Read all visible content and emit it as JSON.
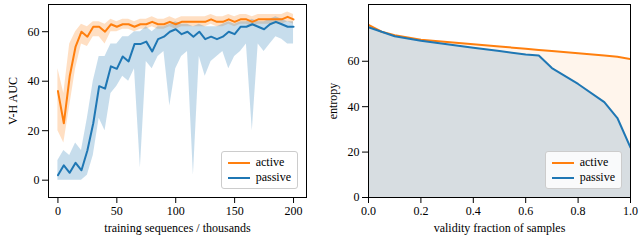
{
  "chart_data": [
    {
      "type": "line",
      "x_label": "training sequences / thousands",
      "y_label": "V-H AUC",
      "x": [
        0,
        5,
        10,
        15,
        20,
        25,
        30,
        35,
        40,
        45,
        50,
        55,
        60,
        65,
        70,
        75,
        80,
        85,
        90,
        95,
        100,
        105,
        110,
        115,
        120,
        125,
        130,
        135,
        140,
        145,
        150,
        155,
        160,
        165,
        170,
        175,
        180,
        185,
        190,
        195,
        200
      ],
      "xlim": [
        -8,
        211
      ],
      "xticks": [
        0,
        50,
        100,
        150,
        200
      ],
      "ylim": [
        -7,
        71
      ],
      "yticks": [
        0,
        20,
        40,
        60
      ],
      "grid": false,
      "legend": "lower right",
      "series": [
        {
          "name": "active",
          "color": "#ff7f0e",
          "values": [
            36,
            23,
            42,
            54,
            60,
            58,
            62,
            62,
            60,
            63,
            62,
            63,
            63,
            62,
            63,
            63,
            64,
            63,
            63,
            64,
            63,
            64,
            64,
            64,
            64,
            64,
            65,
            64,
            64,
            65,
            64,
            65,
            65,
            64,
            65,
            65,
            65,
            65,
            65,
            66,
            65
          ],
          "lower": [
            20,
            15,
            30,
            45,
            55,
            54,
            58,
            58,
            55,
            60,
            60,
            61,
            61,
            60,
            61,
            61,
            62,
            61,
            61,
            62,
            61,
            62,
            62,
            62,
            62,
            62,
            63,
            62,
            62,
            63,
            62,
            63,
            63,
            62,
            63,
            63,
            63,
            63,
            63,
            64,
            63
          ],
          "upper": [
            45,
            35,
            55,
            60,
            63,
            62,
            64,
            64,
            63,
            65,
            64,
            65,
            65,
            64,
            65,
            65,
            66,
            65,
            65,
            66,
            65,
            66,
            66,
            66,
            66,
            66,
            67,
            66,
            66,
            67,
            66,
            67,
            67,
            66,
            67,
            67,
            67,
            67,
            67,
            68,
            67
          ]
        },
        {
          "name": "passive",
          "color": "#1f77b4",
          "values": [
            2,
            6,
            3,
            7,
            4,
            12,
            23,
            38,
            37,
            46,
            45,
            50,
            48,
            55,
            55,
            56,
            52,
            57,
            58,
            60,
            61,
            59,
            60,
            58,
            60,
            57,
            58,
            57,
            58,
            60,
            59,
            62,
            62,
            63,
            62,
            61,
            63,
            64,
            63,
            62,
            62
          ],
          "lower": [
            0,
            0,
            0,
            0,
            0,
            2,
            10,
            25,
            20,
            35,
            38,
            42,
            40,
            45,
            5,
            48,
            45,
            50,
            52,
            30,
            45,
            50,
            52,
            2,
            50,
            42,
            48,
            50,
            52,
            45,
            50,
            52,
            55,
            20,
            55,
            52,
            55,
            58,
            57,
            55,
            55
          ],
          "upper": [
            8,
            12,
            10,
            15,
            12,
            25,
            40,
            50,
            50,
            55,
            55,
            58,
            58,
            60,
            60,
            62,
            60,
            62,
            62,
            63,
            64,
            63,
            63,
            62,
            63,
            62,
            62,
            62,
            63,
            64,
            63,
            64,
            64,
            65,
            64,
            64,
            65,
            66,
            65,
            64,
            64
          ]
        }
      ]
    },
    {
      "type": "area",
      "x_label": "validity fraction of samples",
      "y_label": "entropy",
      "x": [
        0,
        0.05,
        0.1,
        0.2,
        0.3,
        0.4,
        0.5,
        0.6,
        0.65,
        0.7,
        0.8,
        0.9,
        0.95,
        1.0
      ],
      "xlim": [
        0,
        1
      ],
      "xticks": [
        {
          "value": 0,
          "label": "0.0"
        },
        {
          "value": 0.2,
          "label": "0.2"
        },
        {
          "value": 0.4,
          "label": "0.4"
        },
        {
          "value": 0.6,
          "label": "0.6"
        },
        {
          "value": 0.8,
          "label": "0.8"
        },
        {
          "value": 1,
          "label": "1.0"
        }
      ],
      "ylim": [
        0,
        85
      ],
      "yticks": [
        0,
        20,
        40,
        60
      ],
      "grid": false,
      "legend": "lower right",
      "series": [
        {
          "name": "active",
          "color": "#ff7f0e",
          "values": [
            76,
            73,
            71.5,
            69.5,
            68.5,
            67.5,
            66.5,
            65.5,
            65,
            64.5,
            63.5,
            62.5,
            62,
            61
          ]
        },
        {
          "name": "passive",
          "color": "#1f77b4",
          "values": [
            75,
            73,
            71,
            69,
            67.5,
            66,
            64.5,
            63,
            62.5,
            57,
            50,
            42,
            35,
            22
          ]
        }
      ]
    }
  ]
}
